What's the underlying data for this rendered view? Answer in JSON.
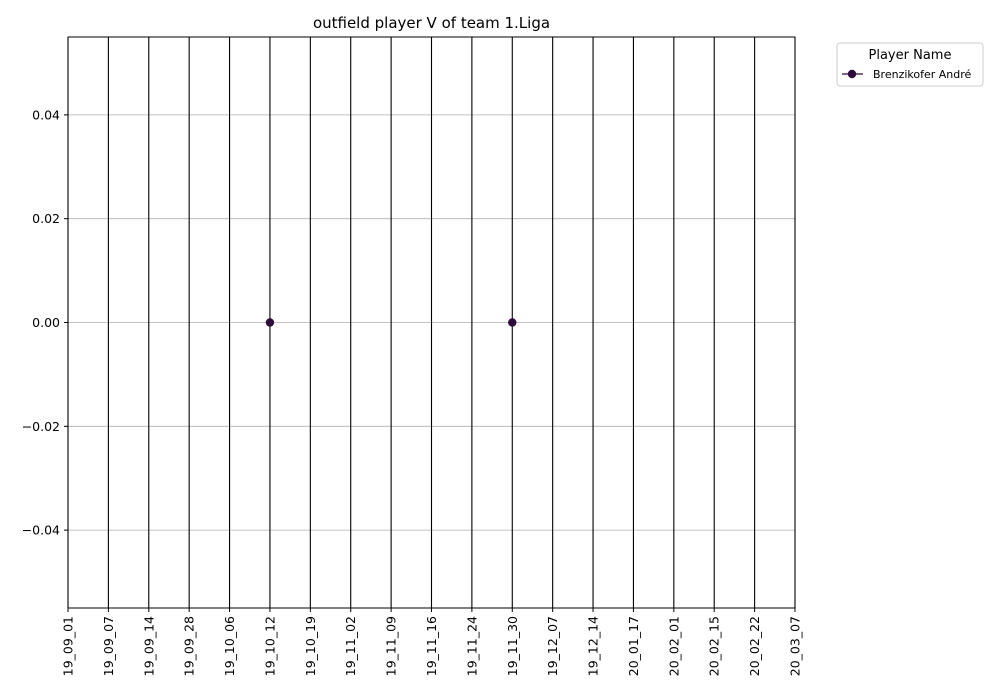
{
  "chart_data": {
    "type": "line",
    "title": "outfield player V of team 1.Liga",
    "xlabel": "",
    "ylabel": "",
    "categories": [
      "19_09_01",
      "19_09_07",
      "19_09_14",
      "19_09_28",
      "19_10_06",
      "19_10_12",
      "19_10_19",
      "19_11_02",
      "19_11_09",
      "19_11_16",
      "19_11_24",
      "19_11_30",
      "19_12_07",
      "19_12_14",
      "20_01_17",
      "20_02_01",
      "20_02_15",
      "20_02_22",
      "20_03_07"
    ],
    "ylim": [
      -0.055,
      0.055
    ],
    "yticks": [
      "−0.04",
      "−0.02",
      "0.00",
      "0.02",
      "0.04"
    ],
    "ytick_values": [
      -0.04,
      -0.02,
      0.0,
      0.02,
      0.04
    ],
    "grid": "horizontal",
    "vertical_lines": "at every date",
    "legend": {
      "title": "Player Name",
      "placement": "outside-top-right"
    },
    "series": [
      {
        "name": "Brenzikofer André",
        "color": "#2d0b3a",
        "points": [
          {
            "x": "19_10_12",
            "y": 0.0
          },
          {
            "x": "19_11_30",
            "y": 0.0
          }
        ]
      }
    ]
  }
}
